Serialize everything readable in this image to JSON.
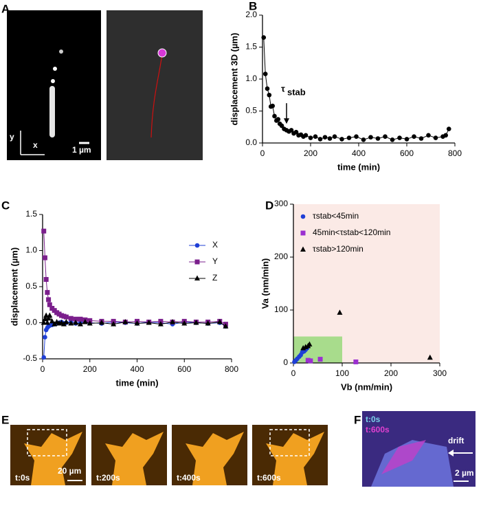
{
  "figure": {
    "panel_labels": [
      "A",
      "B",
      "C",
      "D",
      "E",
      "F"
    ],
    "panel_a": {
      "y_axis": "y",
      "x_axis": "x",
      "scale": "1 µm"
    },
    "panel_e": {
      "times": [
        "t:0s",
        "t:200s",
        "t:400s",
        "t:600s"
      ],
      "scale": "20 µm"
    },
    "panel_f": {
      "legend": [
        "t:0s",
        "t:600s"
      ],
      "arrow": "drift",
      "scale": "2 µm"
    }
  },
  "chart_data": [
    {
      "type": "line",
      "xlabel": "time (min)",
      "ylabel": "displacement 3D (µm)",
      "x": [
        5,
        12,
        20,
        28,
        35,
        42,
        50,
        58,
        65,
        72,
        80,
        90,
        100,
        110,
        120,
        130,
        140,
        150,
        160,
        170,
        180,
        200,
        220,
        240,
        260,
        280,
        300,
        330,
        360,
        390,
        420,
        450,
        480,
        510,
        540,
        570,
        600,
        630,
        660,
        690,
        720,
        750,
        762,
        775
      ],
      "series": [
        {
          "color": "#000000",
          "marker": "circle",
          "values": [
            1.65,
            1.08,
            0.85,
            0.75,
            0.57,
            0.58,
            0.42,
            0.35,
            0.37,
            0.3,
            0.27,
            0.22,
            0.2,
            0.18,
            0.2,
            0.15,
            0.17,
            0.12,
            0.13,
            0.1,
            0.12,
            0.08,
            0.1,
            0.06,
            0.09,
            0.07,
            0.1,
            0.06,
            0.08,
            0.1,
            0.05,
            0.09,
            0.07,
            0.1,
            0.05,
            0.08,
            0.06,
            0.1,
            0.07,
            0.12,
            0.08,
            0.1,
            0.12,
            0.22
          ]
        }
      ],
      "annotation": {
        "text": "τ",
        "subscript": "stab",
        "x": 100,
        "y": 0.3
      },
      "xlim": [
        0,
        800
      ],
      "xticks": [
        0,
        200,
        400,
        600,
        800
      ],
      "ylim": [
        0,
        2
      ],
      "yticks": [
        {
          "value": 0,
          "label": "0.0"
        },
        0.5,
        {
          "value": 1,
          "label": "1.0"
        },
        1.5,
        {
          "value": 2,
          "label": "2.0"
        }
      ]
    },
    {
      "type": "line",
      "xlabel": "time (min)",
      "ylabel": "displacement (µm)",
      "legend": "upper right",
      "x": [
        5,
        10,
        15,
        20,
        25,
        30,
        40,
        50,
        60,
        70,
        80,
        90,
        100,
        120,
        140,
        160,
        180,
        200,
        250,
        300,
        350,
        400,
        450,
        500,
        550,
        600,
        650,
        700,
        750,
        775
      ],
      "series": [
        {
          "name": "X",
          "color": "#1f3fd6",
          "marker": "circle",
          "values": [
            -0.48,
            -0.2,
            -0.1,
            -0.07,
            -0.05,
            -0.04,
            -0.03,
            -0.02,
            -0.01,
            0.0,
            0.01,
            -0.01,
            0.0,
            0.01,
            -0.01,
            0.0,
            0.02,
            0.0,
            -0.01,
            0.01,
            0.0,
            -0.01,
            0.01,
            0.0,
            -0.02,
            0.01,
            0.0,
            -0.01,
            0.0,
            -0.05
          ]
        },
        {
          "name": "Y",
          "color": "#7b1f8c",
          "marker": "square",
          "values": [
            1.27,
            0.9,
            0.6,
            0.42,
            0.32,
            0.25,
            0.2,
            0.17,
            0.14,
            0.12,
            0.1,
            0.09,
            0.08,
            0.06,
            0.05,
            0.05,
            0.04,
            0.03,
            0.02,
            0.02,
            0.01,
            0.02,
            0.01,
            0.02,
            0.01,
            0.02,
            0.01,
            0.01,
            0.02,
            -0.02
          ]
        },
        {
          "name": "Z",
          "color": "#000000",
          "marker": "triangle",
          "values": [
            0.0,
            0.05,
            0.1,
            0.0,
            0.06,
            0.1,
            0.02,
            -0.02,
            0.01,
            -0.01,
            0.0,
            -0.02,
            0.01,
            -0.01,
            0.0,
            -0.02,
            0.01,
            -0.01,
            0.0,
            -0.02,
            0.01,
            -0.01,
            0.0,
            -0.02,
            0.01,
            -0.01,
            0.0,
            -0.01,
            0.01,
            -0.05
          ]
        }
      ],
      "xlim": [
        0,
        800
      ],
      "xticks": [
        0,
        200,
        400,
        600,
        800
      ],
      "ylim": [
        -0.5,
        1.5
      ],
      "yticks": [
        -0.5,
        {
          "value": 0,
          "label": "0.0"
        },
        0.5,
        {
          "value": 1,
          "label": "1.0"
        },
        1.5
      ]
    },
    {
      "type": "scatter",
      "xlabel": "Vb (nm/min)",
      "ylabel": "Va (nm/min)",
      "legend": "upper left",
      "background": "#fbeae6",
      "region": {
        "x": [
          0,
          100
        ],
        "y": [
          0,
          50
        ],
        "color": "#a8dc8c"
      },
      "series": [
        {
          "name": "τstab<45min",
          "color": "#1f3fd6",
          "marker": "circle",
          "x": [
            2,
            5,
            8,
            12,
            15,
            18,
            22,
            25,
            28,
            30
          ],
          "y": [
            2,
            5,
            8,
            12,
            15,
            20,
            22,
            25,
            28,
            5
          ]
        },
        {
          "name": "45min<τstab<120min",
          "color": "#9b30d0",
          "marker": "square",
          "x": [
            30,
            35,
            55,
            128
          ],
          "y": [
            5,
            4,
            7,
            2
          ]
        },
        {
          "name": "τstab>120min",
          "color": "#000000",
          "marker": "triangle",
          "x": [
            20,
            25,
            30,
            33,
            95,
            280
          ],
          "y": [
            28,
            30,
            32,
            35,
            95,
            10
          ]
        }
      ],
      "xlim": [
        0,
        300
      ],
      "xticks": [
        0,
        100,
        200,
        300
      ],
      "ylim": [
        0,
        300
      ],
      "yticks": [
        0,
        100,
        200,
        300
      ]
    }
  ]
}
